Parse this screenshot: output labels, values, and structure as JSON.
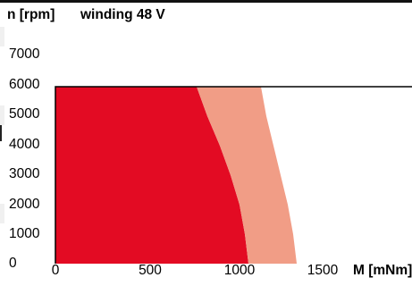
{
  "chart_data": {
    "type": "area",
    "title": "winding 48 V",
    "ylabel": "n [rpm]",
    "xlabel": "M [mNm]",
    "xlim": [
      0,
      2000
    ],
    "ylim": [
      0,
      7000
    ],
    "y_ticks": [
      "7000",
      "6000",
      "5000",
      "4000",
      "3000",
      "2000",
      "1000",
      "0"
    ],
    "x_ticks": [
      "0",
      "500",
      "1000",
      "1500"
    ],
    "grid": false,
    "series": [
      {
        "role": "continuous-operation",
        "color": "#e30b23",
        "x": [
          0,
          790,
          850,
          920,
          980,
          1030,
          1060,
          1080,
          0
        ],
        "y": [
          6000,
          6000,
          5000,
          4000,
          3000,
          2000,
          1000,
          0,
          0
        ]
      },
      {
        "role": "intermittent-operation",
        "color": "#f19d86",
        "x": [
          790,
          1150,
          1180,
          1220,
          1260,
          1300,
          1330,
          1350,
          1080,
          1060,
          1030,
          980,
          920,
          850
        ],
        "y": [
          6000,
          6000,
          5000,
          4000,
          3000,
          2000,
          1000,
          0,
          0,
          1000,
          2000,
          3000,
          4000,
          5000
        ]
      }
    ],
    "border_color": "#000000"
  }
}
